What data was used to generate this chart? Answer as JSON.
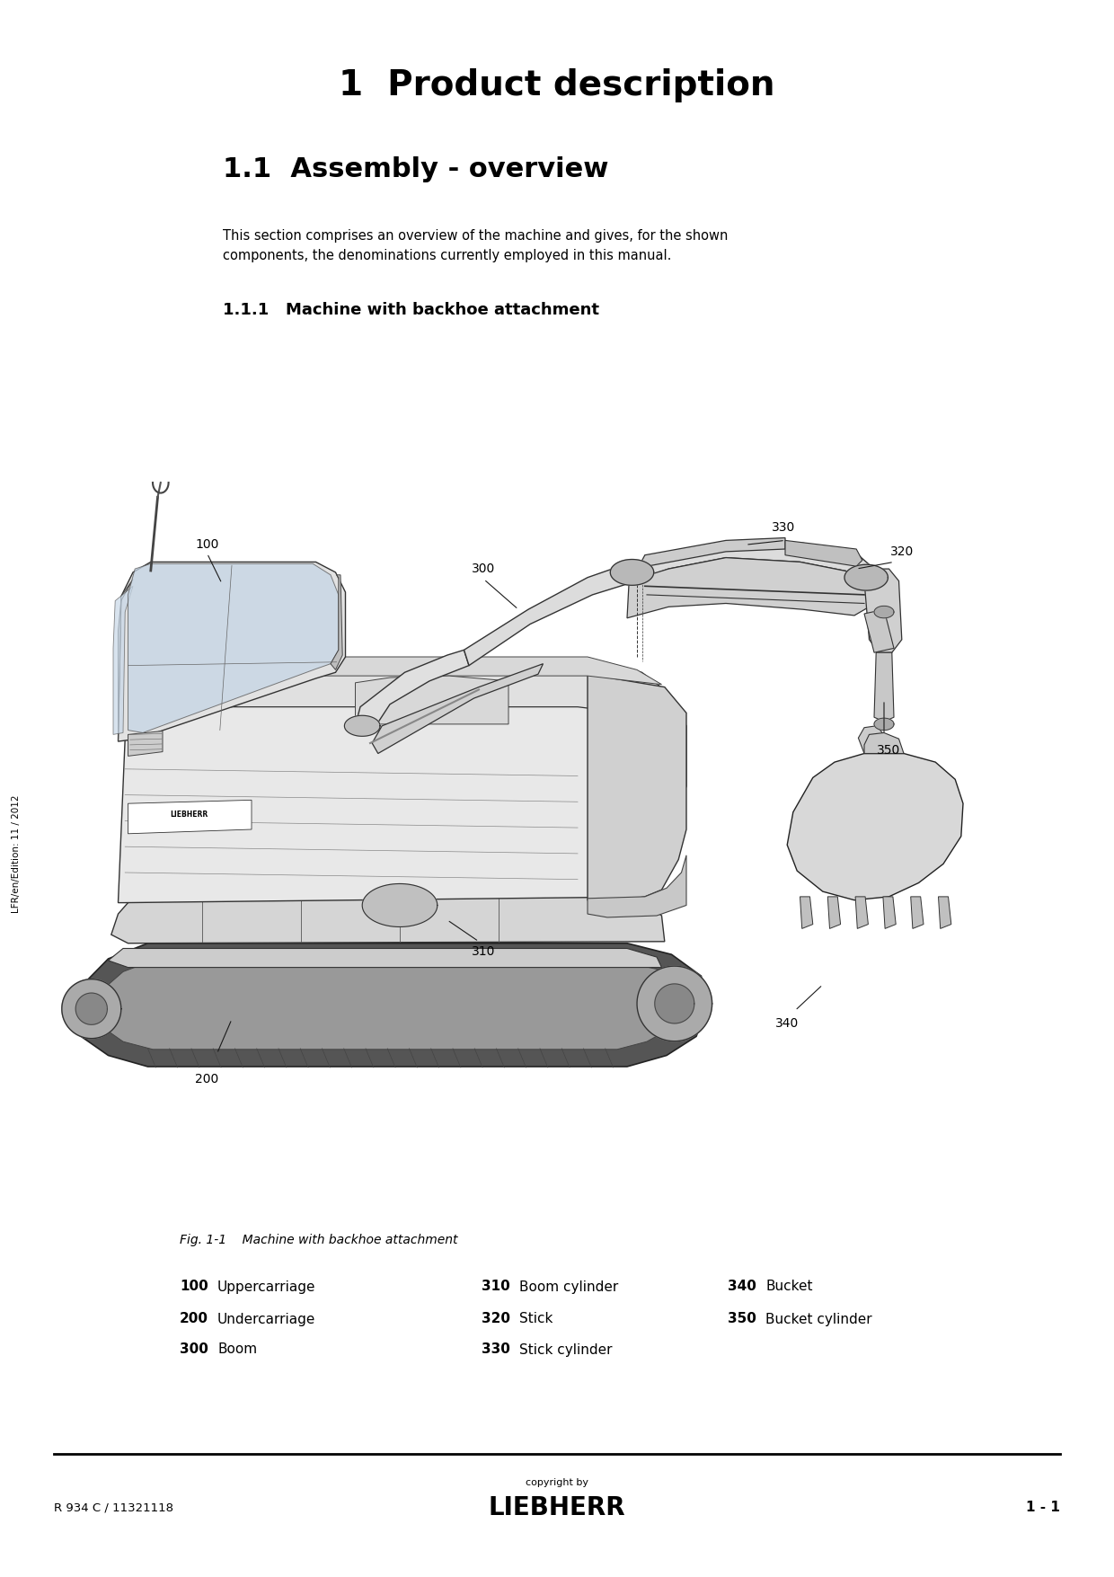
{
  "bg_color": "#ffffff",
  "title_chapter": "1  Product description",
  "title_section": "1.1  Assembly - overview",
  "title_subsection": "1.1.1   Machine with backhoe attachment",
  "body_text": "This section comprises an overview of the machine and gives, for the shown\ncomponents, the denominations currently employed in this manual.",
  "fig_caption": "Fig. 1-1    Machine with backhoe attachment",
  "footer_left": "R 934 C / 11321118",
  "footer_center_small": "copyright by",
  "footer_center_logo": "LIEBHERR",
  "footer_right": "1 - 1",
  "side_text": "LFR/en/Edition: 11 / 2012",
  "col1": [
    [
      "100",
      "Uppercarriage"
    ],
    [
      "200",
      "Undercarriage"
    ],
    [
      "300",
      "Boom"
    ]
  ],
  "col2": [
    [
      "310",
      "Boom cylinder"
    ],
    [
      "320",
      "Stick"
    ],
    [
      "330",
      "Stick cylinder"
    ]
  ],
  "col3": [
    [
      "340",
      "Bucket"
    ],
    [
      "350",
      "Bucket cylinder"
    ]
  ]
}
